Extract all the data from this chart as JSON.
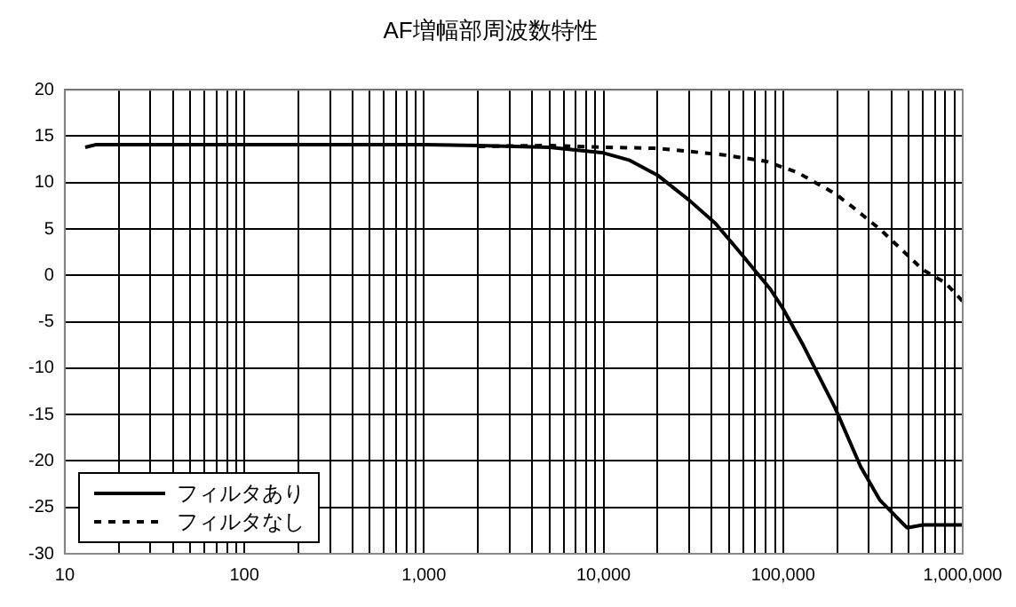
{
  "chart_data": {
    "type": "line",
    "title": "AF増幅部周波数特性",
    "log": "x",
    "grid": true,
    "legend": "bottom left",
    "marker": "none",
    "xlim": [
      10,
      1000000
    ],
    "ylim": [
      -30,
      20
    ],
    "xticks": [
      {
        "value": 10,
        "label": "10"
      },
      {
        "value": 20,
        "label": null
      },
      {
        "value": 30,
        "label": null
      },
      {
        "value": 40,
        "label": null
      },
      {
        "value": 50,
        "label": null
      },
      {
        "value": 60,
        "label": null
      },
      {
        "value": 70,
        "label": null
      },
      {
        "value": 80,
        "label": null
      },
      {
        "value": 90,
        "label": null
      },
      {
        "value": 100,
        "label": "100"
      },
      {
        "value": 200,
        "label": null
      },
      {
        "value": 300,
        "label": null
      },
      {
        "value": 400,
        "label": null
      },
      {
        "value": 500,
        "label": null
      },
      {
        "value": 600,
        "label": null
      },
      {
        "value": 700,
        "label": null
      },
      {
        "value": 800,
        "label": null
      },
      {
        "value": 900,
        "label": null
      },
      {
        "value": 1000,
        "label": "1,000"
      },
      {
        "value": 2000,
        "label": null
      },
      {
        "value": 3000,
        "label": null
      },
      {
        "value": 4000,
        "label": null
      },
      {
        "value": 5000,
        "label": null
      },
      {
        "value": 6000,
        "label": null
      },
      {
        "value": 7000,
        "label": null
      },
      {
        "value": 8000,
        "label": null
      },
      {
        "value": 9000,
        "label": null
      },
      {
        "value": 10000,
        "label": "10,000"
      },
      {
        "value": 20000,
        "label": null
      },
      {
        "value": 30000,
        "label": null
      },
      {
        "value": 40000,
        "label": null
      },
      {
        "value": 50000,
        "label": null
      },
      {
        "value": 60000,
        "label": null
      },
      {
        "value": 70000,
        "label": null
      },
      {
        "value": 80000,
        "label": null
      },
      {
        "value": 90000,
        "label": null
      },
      {
        "value": 100000,
        "label": "100,000"
      },
      {
        "value": 200000,
        "label": null
      },
      {
        "value": 300000,
        "label": null
      },
      {
        "value": 400000,
        "label": null
      },
      {
        "value": 500000,
        "label": null
      },
      {
        "value": 600000,
        "label": null
      },
      {
        "value": 700000,
        "label": null
      },
      {
        "value": 800000,
        "label": null
      },
      {
        "value": 900000,
        "label": null
      },
      {
        "value": 1000000,
        "label": "1,000,000"
      }
    ],
    "yticks": [
      -30,
      -25,
      -20,
      -15,
      -10,
      -5,
      0,
      5,
      10,
      15,
      20
    ],
    "series": [
      {
        "name": "フィルタあり",
        "color": "#000000",
        "line_style": "solid",
        "x": [
          13,
          15,
          100,
          1000,
          2000,
          5000,
          10000,
          14000,
          20000,
          30000,
          42000,
          58000,
          85000,
          100000,
          130000,
          195000,
          270000,
          345000,
          490000,
          600000,
          1000000
        ],
        "values": [
          13.8,
          14.1,
          14.1,
          14.1,
          14.0,
          13.8,
          13.2,
          12.4,
          10.8,
          8.1,
          5.6,
          2.4,
          -1.5,
          -3.6,
          -7.6,
          -14.3,
          -20.6,
          -24.2,
          -27.2,
          -26.9,
          -26.9
        ]
      },
      {
        "name": "フィルタなし",
        "color": "#000000",
        "line_style": "dashed",
        "x": [
          2000,
          5000,
          10000,
          20000,
          46000,
          80000,
          120000,
          195000,
          250000,
          350000,
          600000,
          800000,
          1000000
        ],
        "values": [
          13.9,
          14.0,
          13.8,
          13.7,
          13.0,
          12.3,
          11.1,
          8.8,
          7.2,
          4.9,
          0.6,
          -0.8,
          -2.8
        ]
      }
    ]
  }
}
